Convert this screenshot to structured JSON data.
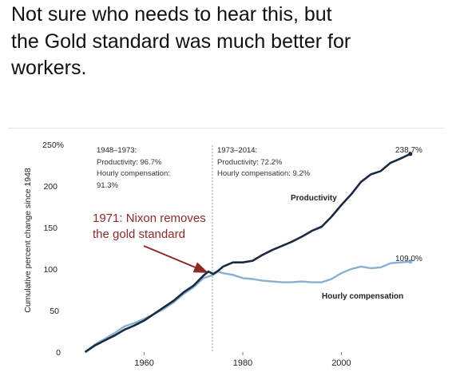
{
  "post": {
    "line1": "Not sure who needs to hear this, but",
    "line2": "the Gold standard was much better for",
    "line3": "workers."
  },
  "chart_data": {
    "type": "line",
    "ylabel": "Cumulative percent change since 1948",
    "xlabel": "",
    "xlim": [
      1947,
      2016
    ],
    "ylim": [
      0,
      250
    ],
    "x_ticks": [
      1960,
      1980,
      2000
    ],
    "y_ticks": [
      0,
      50,
      100,
      150,
      200,
      250
    ],
    "y_tick_labels": [
      "0",
      "50",
      "100",
      "150",
      "200",
      "250%"
    ],
    "grid": false,
    "colors": {
      "productivity": "#1b2a41",
      "compensation": "#8ab0cf",
      "annotation": "#8b2a2a"
    },
    "annotations": {
      "left_period": "1948–1973:",
      "left_prod": "Productivity: 96.7%",
      "left_comp": "Hourly compensation:",
      "left_comp_val": "91.3%",
      "right_period": "1973–2014:",
      "right_prod": "Productivity: 72.2%",
      "right_comp": "Hourly compensation: 9.2%",
      "nixon_line1": "1971: Nixon removes",
      "nixon_line2": "the gold standard",
      "end_prod": "238.7%",
      "end_comp": "109.0%"
    },
    "series": [
      {
        "name": "Productivity",
        "x": [
          1948,
          1950,
          1952,
          1954,
          1956,
          1958,
          1960,
          1962,
          1964,
          1966,
          1968,
          1970,
          1971,
          1972,
          1973,
          1974,
          1975,
          1976,
          1978,
          1980,
          1982,
          1984,
          1986,
          1988,
          1990,
          1992,
          1994,
          1996,
          1998,
          2000,
          2002,
          2004,
          2006,
          2008,
          2010,
          2012,
          2014
        ],
        "y": [
          0,
          8,
          14,
          20,
          27,
          32,
          38,
          46,
          54,
          62,
          72,
          80,
          86,
          92,
          97,
          94,
          98,
          103,
          108,
          108,
          110,
          117,
          123,
          128,
          133,
          139,
          146,
          151,
          163,
          177,
          190,
          205,
          214,
          218,
          228,
          233,
          238.7
        ]
      },
      {
        "name": "Hourly compensation",
        "x": [
          1948,
          1950,
          1952,
          1954,
          1956,
          1958,
          1960,
          1962,
          1964,
          1966,
          1968,
          1970,
          1972,
          1973,
          1974,
          1975,
          1976,
          1978,
          1980,
          1982,
          1984,
          1986,
          1988,
          1990,
          1992,
          1994,
          1996,
          1998,
          2000,
          2002,
          2004,
          2006,
          2008,
          2010,
          2012,
          2014
        ],
        "y": [
          0,
          9,
          16,
          23,
          31,
          35,
          40,
          46,
          52,
          60,
          70,
          78,
          89,
          91,
          93,
          97,
          95,
          93,
          89,
          88,
          86,
          85,
          84,
          84,
          85,
          84,
          84,
          88,
          95,
          100,
          103,
          101,
          102,
          107,
          108,
          109
        ]
      }
    ]
  }
}
